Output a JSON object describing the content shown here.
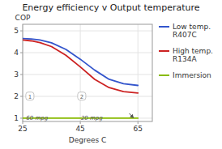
{
  "chart_data": {
    "type": "line",
    "title": "Energy efficiency  v Output temperature",
    "x_label": "Degrees C",
    "y_label": "COP",
    "xlim": [
      25,
      70
    ],
    "ylim": [
      0.85,
      5.3
    ],
    "xticks": [
      25,
      45,
      65
    ],
    "yticks": [
      1,
      2,
      3,
      4,
      5
    ],
    "grid": true,
    "legend": "right",
    "series": [
      {
        "name": "Low temp.\nR407C",
        "color": "#3355cc",
        "x": [
          25,
          28,
          31,
          35,
          40,
          45,
          50,
          55,
          60,
          65
        ],
        "values": [
          4.65,
          4.63,
          4.58,
          4.45,
          4.15,
          3.7,
          3.2,
          2.78,
          2.58,
          2.5
        ]
      },
      {
        "name": "High temp.\nR134A",
        "color": "#cc2222",
        "x": [
          25,
          28,
          31,
          35,
          40,
          45,
          50,
          55,
          60,
          65
        ],
        "values": [
          4.58,
          4.54,
          4.46,
          4.28,
          3.88,
          3.35,
          2.78,
          2.4,
          2.22,
          2.15
        ]
      },
      {
        "name": "Immersion",
        "color": "#88bb00",
        "x": [
          25,
          65
        ],
        "values": [
          1.0,
          1.0
        ]
      }
    ],
    "annotations": [
      {
        "text": "1",
        "x": 27.5,
        "y": 1.9
      },
      {
        "text": "2",
        "x": 45.5,
        "y": 1.9
      },
      {
        "text": "60 mpg",
        "x": 30,
        "y": 0.93
      },
      {
        "text": "20 mpg",
        "x": 49,
        "y": 0.93
      }
    ],
    "arrows": [
      {
        "x": 62,
        "y": 1.22,
        "x_end": 63.5,
        "y_end": 1.01
      }
    ]
  }
}
